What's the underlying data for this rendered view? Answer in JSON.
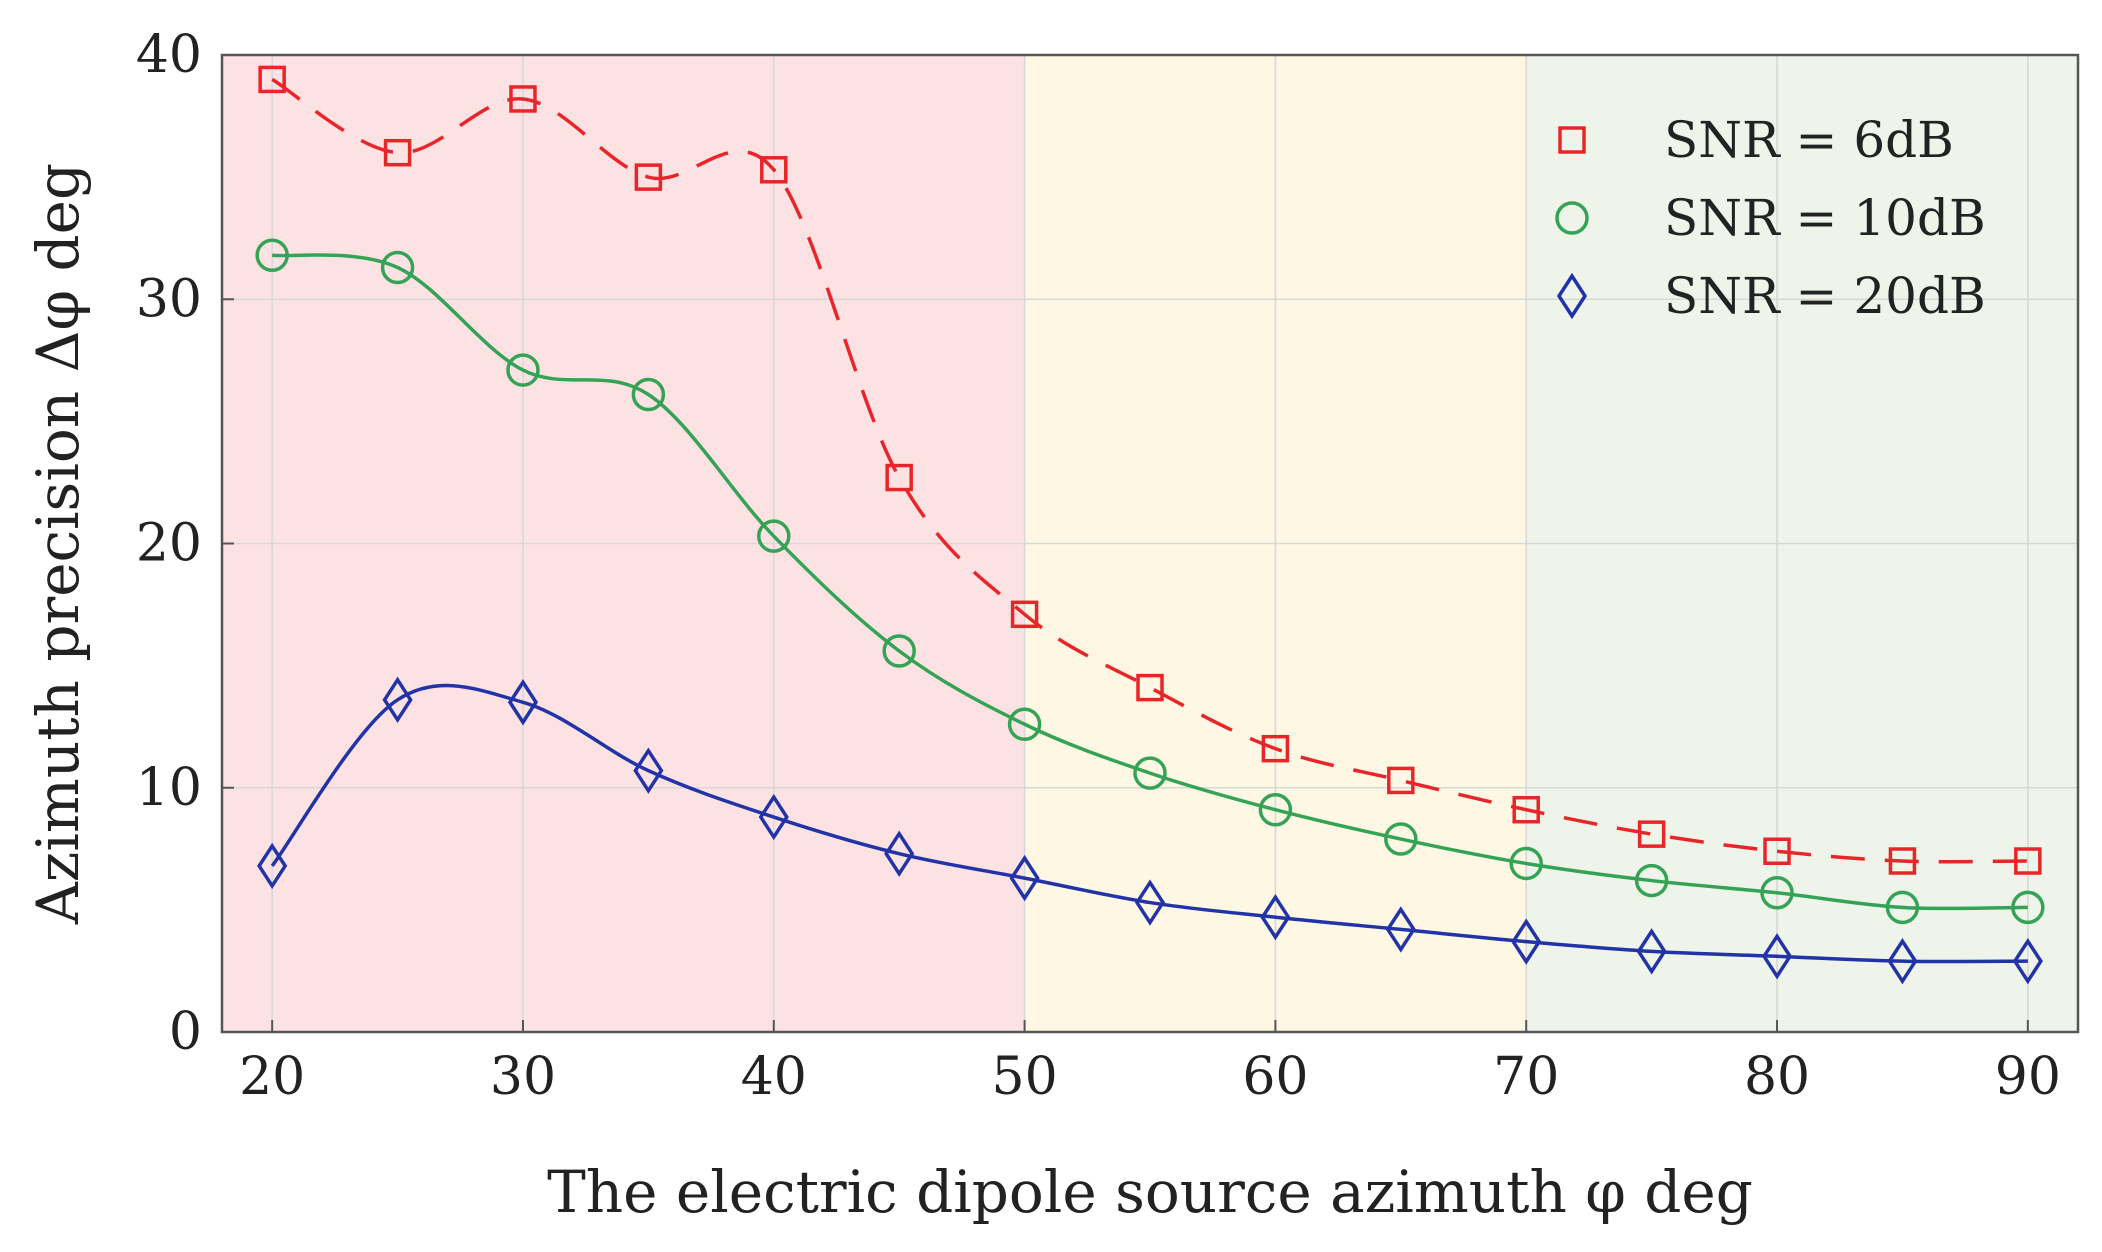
{
  "chart_data": {
    "type": "line",
    "title": "",
    "xlabel": "The electric dipole source azimuth φ deg",
    "ylabel": "Azimuth precision Δφ deg",
    "xlim": [
      18,
      92
    ],
    "ylim": [
      0,
      40
    ],
    "xticks": [
      20,
      30,
      40,
      50,
      60,
      70,
      80,
      90
    ],
    "yticks": [
      0,
      10,
      20,
      30,
      40
    ],
    "grid": true,
    "legend_position": "top-right",
    "regions": [
      {
        "from": 18,
        "to": 50,
        "color": "#fde2e4"
      },
      {
        "from": 50,
        "to": 70,
        "color": "#fdf7e4"
      },
      {
        "from": 70,
        "to": 92,
        "color": "#eef4ea"
      }
    ],
    "x": [
      20,
      25,
      30,
      35,
      40,
      45,
      50,
      55,
      60,
      65,
      70,
      75,
      80,
      85,
      90
    ],
    "series": [
      {
        "name": "SNR = 6dB",
        "marker": "square",
        "line": "dashed",
        "color": "#e8262a",
        "values": [
          39.0,
          36.0,
          38.2,
          35.0,
          35.3,
          22.7,
          17.1,
          14.1,
          11.6,
          10.3,
          9.1,
          8.1,
          7.4,
          7.0,
          7.0
        ]
      },
      {
        "name": "SNR = 10dB",
        "marker": "circle",
        "line": "solid",
        "color": "#35a356",
        "values": [
          31.8,
          31.3,
          27.1,
          26.1,
          20.3,
          15.6,
          12.6,
          10.6,
          9.1,
          7.9,
          6.9,
          6.2,
          5.7,
          5.1,
          5.1
        ]
      },
      {
        "name": "SNR = 20dB",
        "marker": "diamond",
        "line": "solid",
        "color": "#2233a8",
        "values": [
          6.8,
          13.6,
          13.5,
          10.7,
          8.8,
          7.3,
          6.3,
          5.3,
          4.7,
          4.2,
          3.7,
          3.3,
          3.1,
          2.9,
          2.9
        ]
      }
    ]
  }
}
